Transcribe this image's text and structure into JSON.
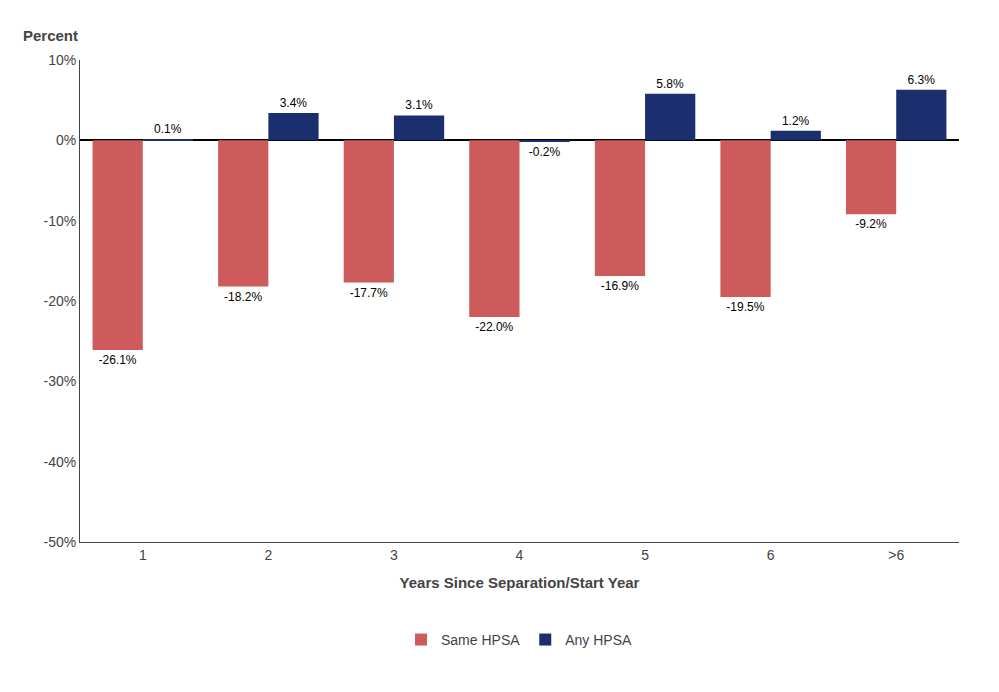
{
  "chart_data": {
    "type": "bar",
    "xlabel": "Years Since Separation/Start Year",
    "ylabel": "Percent",
    "categories": [
      "1",
      "2",
      "3",
      "4",
      "5",
      "6",
      ">6"
    ],
    "series": [
      {
        "name": "Same HPSA",
        "color": "#CD5B5B",
        "values": [
          -26.1,
          -18.2,
          -17.7,
          -22.0,
          -16.9,
          -19.5,
          -9.2
        ],
        "value_labels": [
          "-26.1%",
          "-18.2%",
          "-17.7%",
          "-22.0%",
          "-16.9%",
          "-19.5%",
          "-9.2%"
        ]
      },
      {
        "name": "Any HPSA",
        "color": "#1B2F6E",
        "values": [
          0.1,
          3.4,
          3.1,
          -0.2,
          5.8,
          1.2,
          6.3
        ],
        "value_labels": [
          "0.1%",
          "3.4%",
          "3.1%",
          "-0.2%",
          "5.8%",
          "1.2%",
          "6.3%"
        ]
      }
    ],
    "ylim": [
      -50,
      10
    ],
    "yticks": [
      {
        "value": -50,
        "label": "-50%"
      },
      {
        "value": -40,
        "label": "-40%"
      },
      {
        "value": -30,
        "label": "-30%"
      },
      {
        "value": -20,
        "label": "-20%"
      },
      {
        "value": -10,
        "label": "-10%"
      },
      {
        "value": 0,
        "label": "0%"
      },
      {
        "value": 10,
        "label": "10%"
      }
    ],
    "data_labels": true,
    "grid": false,
    "legend": "bottom"
  }
}
